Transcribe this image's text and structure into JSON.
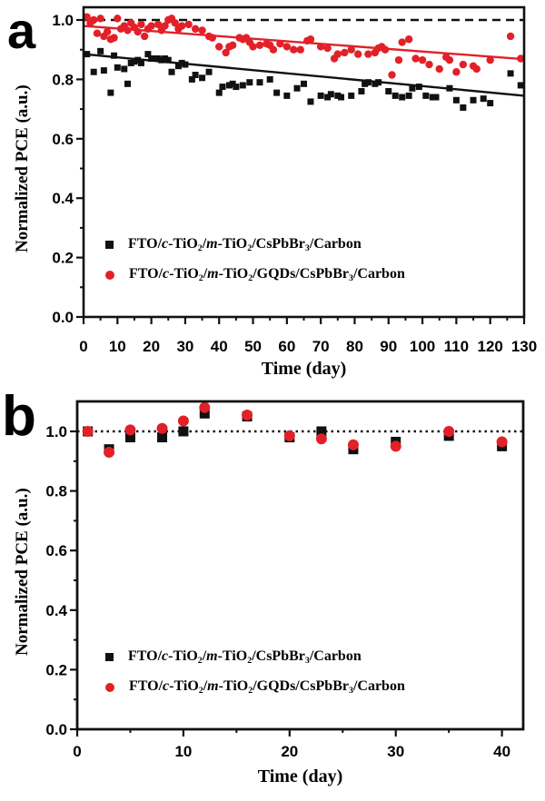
{
  "figure": {
    "panels": [
      {
        "id": "a",
        "panel_label": "a",
        "y_axis": {
          "title": "Normalized PCE (a.u.)",
          "tick_labels": [
            "0.0",
            "0.2",
            "0.4",
            "0.6",
            "0.8",
            "1.0"
          ],
          "minor_step": 0.1
        },
        "x_axis": {
          "title": "Time (day)",
          "tick_labels": [
            "0",
            "10",
            "20",
            "30",
            "40",
            "50",
            "60",
            "70",
            "80",
            "90",
            "100",
            "110",
            "120",
            "130"
          ],
          "minor_step": 5
        },
        "legend": [
          {
            "marker": "square",
            "color": "#111111",
            "label": "FTO/c-TiO2/m-TiO2/CsPbBr3/Carbon",
            "rich": "FTO/~c~-TiO_2_/~m~-TiO_2_/CsPbBr_3_/Carbon"
          },
          {
            "marker": "circle",
            "color": "#e22028",
            "label": "FTO/c-TiO2/m-TiO2/GQDs/CsPbBr3/Carbon",
            "rich": "FTO/~c~-TiO_2_/~m~-TiO_2_/GQDs/CsPbBr_3_/Carbon"
          }
        ]
      },
      {
        "id": "b",
        "panel_label": "b",
        "y_axis": {
          "title": "Normalized PCE (a.u.)",
          "tick_labels": [
            "0.0",
            "0.2",
            "0.4",
            "0.6",
            "0.8",
            "1.0"
          ],
          "minor_step": 0.1
        },
        "x_axis": {
          "title": "Time (day)",
          "tick_labels": [
            "0",
            "10",
            "20",
            "30",
            "40"
          ],
          "minor_step": 5
        },
        "legend": [
          {
            "marker": "square",
            "color": "#111111",
            "label": "FTO/c-TiO2/m-TiO2/CsPbBr3/Carbon",
            "rich": "FTO/~c~-TiO_2_/~m~-TiO_2_/CsPbBr_3_/Carbon"
          },
          {
            "marker": "circle",
            "color": "#e22028",
            "label": "FTO/c-TiO2/m-TiO2/GQDs/CsPbBr3/Carbon",
            "rich": "FTO/~c~-TiO_2_/~m~-TiO_2_/GQDs/CsPbBr_3_/Carbon"
          }
        ]
      }
    ]
  },
  "chart_data": [
    {
      "panel": "a",
      "type": "scatter",
      "xlabel": "Time (day)",
      "ylabel": "Normalized PCE (a.u.)",
      "xlim": [
        0,
        130
      ],
      "ylim": [
        0,
        1.045
      ],
      "reference_line": {
        "y": 1.0,
        "style": "dashed"
      },
      "series": [
        {
          "name": "FTO/c-TiO2/m-TiO2/CsPbBr3/Carbon",
          "marker": "square",
          "color": "#111111",
          "trend": {
            "x": [
              0,
              130
            ],
            "y": [
              0.885,
              0.745
            ]
          },
          "points": [
            [
              1,
              0.885
            ],
            [
              3,
              0.825
            ],
            [
              5,
              0.895
            ],
            [
              6,
              0.83
            ],
            [
              8,
              0.755
            ],
            [
              9,
              0.88
            ],
            [
              10,
              0.84
            ],
            [
              12,
              0.835
            ],
            [
              13,
              0.785
            ],
            [
              14,
              0.855
            ],
            [
              15,
              0.86
            ],
            [
              16,
              0.865
            ],
            [
              17,
              0.855
            ],
            [
              19,
              0.885
            ],
            [
              20,
              0.87
            ],
            [
              21,
              0.87
            ],
            [
              22,
              0.87
            ],
            [
              23,
              0.865
            ],
            [
              24,
              0.87
            ],
            [
              25,
              0.865
            ],
            [
              26,
              0.825
            ],
            [
              28,
              0.845
            ],
            [
              29,
              0.855
            ],
            [
              30,
              0.85
            ],
            [
              32,
              0.8
            ],
            [
              33,
              0.815
            ],
            [
              35,
              0.805
            ],
            [
              37,
              0.825
            ],
            [
              40,
              0.755
            ],
            [
              41,
              0.775
            ],
            [
              43,
              0.78
            ],
            [
              44,
              0.785
            ],
            [
              45,
              0.775
            ],
            [
              47,
              0.78
            ],
            [
              49,
              0.79
            ],
            [
              52,
              0.79
            ],
            [
              55,
              0.8
            ],
            [
              57,
              0.755
            ],
            [
              60,
              0.745
            ],
            [
              63,
              0.77
            ],
            [
              65,
              0.785
            ],
            [
              67,
              0.725
            ],
            [
              70,
              0.745
            ],
            [
              72,
              0.74
            ],
            [
              73,
              0.75
            ],
            [
              75,
              0.745
            ],
            [
              76,
              0.74
            ],
            [
              79,
              0.745
            ],
            [
              82,
              0.76
            ],
            [
              83,
              0.785
            ],
            [
              84,
              0.79
            ],
            [
              86,
              0.785
            ],
            [
              87,
              0.79
            ],
            [
              90,
              0.76
            ],
            [
              92,
              0.745
            ],
            [
              94,
              0.74
            ],
            [
              96,
              0.745
            ],
            [
              97,
              0.77
            ],
            [
              99,
              0.775
            ],
            [
              101,
              0.745
            ],
            [
              103,
              0.74
            ],
            [
              104,
              0.74
            ],
            [
              108,
              0.77
            ],
            [
              110,
              0.73
            ],
            [
              112,
              0.705
            ],
            [
              115,
              0.73
            ],
            [
              118,
              0.735
            ],
            [
              120,
              0.72
            ],
            [
              126,
              0.82
            ],
            [
              129,
              0.78
            ]
          ]
        },
        {
          "name": "FTO/c-TiO2/m-TiO2/GQDs/CsPbBr3/Carbon",
          "marker": "circle",
          "color": "#e22028",
          "trend": {
            "x": [
              0,
              130
            ],
            "y": [
              0.98,
              0.868
            ]
          },
          "points": [
            [
              1,
              1.01
            ],
            [
              2,
              0.99
            ],
            [
              3,
              1.0
            ],
            [
              4,
              0.955
            ],
            [
              5,
              1.005
            ],
            [
              6,
              0.945
            ],
            [
              7,
              0.96
            ],
            [
              8,
              0.935
            ],
            [
              9,
              0.94
            ],
            [
              10,
              1.005
            ],
            [
              11,
              0.97
            ],
            [
              12,
              0.98
            ],
            [
              13,
              0.965
            ],
            [
              14,
              0.99
            ],
            [
              15,
              0.975
            ],
            [
              16,
              0.96
            ],
            [
              17,
              0.985
            ],
            [
              18,
              0.945
            ],
            [
              19,
              0.97
            ],
            [
              20,
              0.98
            ],
            [
              22,
              0.985
            ],
            [
              23,
              0.965
            ],
            [
              24,
              0.98
            ],
            [
              25,
              1.0
            ],
            [
              26,
              1.005
            ],
            [
              27,
              0.99
            ],
            [
              28,
              0.97
            ],
            [
              29,
              0.98
            ],
            [
              31,
              0.985
            ],
            [
              33,
              0.97
            ],
            [
              35,
              0.965
            ],
            [
              37,
              0.945
            ],
            [
              38,
              0.94
            ],
            [
              40,
              0.91
            ],
            [
              42,
              0.89
            ],
            [
              43,
              0.91
            ],
            [
              44,
              0.915
            ],
            [
              46,
              0.94
            ],
            [
              47,
              0.935
            ],
            [
              48,
              0.94
            ],
            [
              49,
              0.925
            ],
            [
              50,
              0.91
            ],
            [
              52,
              0.915
            ],
            [
              54,
              0.92
            ],
            [
              55,
              0.915
            ],
            [
              56,
              0.9
            ],
            [
              58,
              0.92
            ],
            [
              60,
              0.91
            ],
            [
              62,
              0.9
            ],
            [
              64,
              0.9
            ],
            [
              66,
              0.93
            ],
            [
              67,
              0.935
            ],
            [
              70,
              0.91
            ],
            [
              72,
              0.905
            ],
            [
              74,
              0.87
            ],
            [
              75,
              0.885
            ],
            [
              77,
              0.89
            ],
            [
              79,
              0.9
            ],
            [
              81,
              0.885
            ],
            [
              84,
              0.885
            ],
            [
              86,
              0.89
            ],
            [
              87,
              0.905
            ],
            [
              88,
              0.91
            ],
            [
              89,
              0.9
            ],
            [
              91,
              0.815
            ],
            [
              93,
              0.865
            ],
            [
              94,
              0.925
            ],
            [
              96,
              0.935
            ],
            [
              98,
              0.87
            ],
            [
              100,
              0.865
            ],
            [
              102,
              0.85
            ],
            [
              105,
              0.835
            ],
            [
              107,
              0.875
            ],
            [
              108,
              0.865
            ],
            [
              110,
              0.825
            ],
            [
              112,
              0.85
            ],
            [
              115,
              0.845
            ],
            [
              116,
              0.835
            ],
            [
              120,
              0.865
            ],
            [
              126,
              0.945
            ],
            [
              129,
              0.87
            ]
          ]
        }
      ]
    },
    {
      "panel": "b",
      "type": "scatter",
      "xlabel": "Time (day)",
      "ylabel": "Normalized PCE (a.u.)",
      "xlim": [
        0,
        42
      ],
      "ylim": [
        0,
        1.1
      ],
      "reference_line": {
        "y": 1.0,
        "style": "dotted"
      },
      "series": [
        {
          "name": "FTO/c-TiO2/m-TiO2/CsPbBr3/Carbon",
          "marker": "square",
          "color": "#111111",
          "points": [
            [
              1,
              1.0
            ],
            [
              3,
              0.94
            ],
            [
              5,
              0.98
            ],
            [
              8,
              0.98
            ],
            [
              10,
              1.0
            ],
            [
              12,
              1.06
            ],
            [
              16,
              1.05
            ],
            [
              20,
              0.98
            ],
            [
              23,
              1.0
            ],
            [
              26,
              0.94
            ],
            [
              30,
              0.965
            ],
            [
              35,
              0.985
            ],
            [
              40,
              0.95
            ]
          ]
        },
        {
          "name": "FTO/c-TiO2/m-TiO2/GQDs/CsPbBr3/Carbon",
          "marker": "circle",
          "color": "#e22028",
          "points": [
            [
              1,
              1.0
            ],
            [
              3,
              0.93
            ],
            [
              5,
              1.005
            ],
            [
              8,
              1.01
            ],
            [
              10,
              1.035
            ],
            [
              12,
              1.08
            ],
            [
              16,
              1.055
            ],
            [
              20,
              0.985
            ],
            [
              23,
              0.975
            ],
            [
              26,
              0.955
            ],
            [
              30,
              0.95
            ],
            [
              35,
              1.0
            ],
            [
              40,
              0.965
            ]
          ]
        }
      ]
    }
  ]
}
